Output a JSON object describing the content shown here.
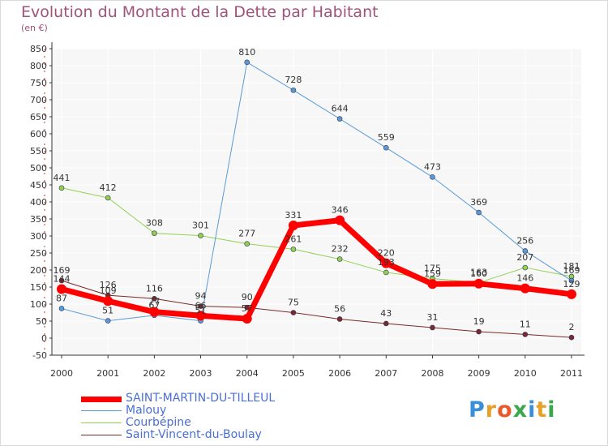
{
  "title": "Evolution du Montant de la Dette par Habitant",
  "subtitle": "(en €)",
  "brand": {
    "letters": [
      "P",
      "r",
      "o",
      "x",
      "i",
      "t",
      "i"
    ],
    "colors": [
      "#3a8fd8",
      "#e8a02a",
      "#e85a2a",
      "#3aa84a",
      "#3a8fd8",
      "#e8a02a",
      "#3aa84a"
    ]
  },
  "chart_data": {
    "type": "line",
    "title": "Evolution du Montant de la Dette par Habitant",
    "subtitle": "(en €)",
    "xlabel": "",
    "ylabel": "",
    "x": [
      "2000",
      "2001",
      "2002",
      "2003",
      "2004",
      "2005",
      "2006",
      "2007",
      "2008",
      "2009",
      "2010",
      "2011"
    ],
    "ylim": [
      -50,
      850
    ],
    "yticks": [
      -50,
      0,
      50,
      100,
      150,
      200,
      250,
      300,
      350,
      400,
      450,
      500,
      550,
      600,
      650,
      700,
      750,
      800,
      850
    ],
    "grid": true,
    "legend_position": "bottom-left",
    "series": [
      {
        "name": "SAINT-MARTIN-DU-TILLEUL",
        "color": "#ff0000",
        "width": 7,
        "values": [
          144,
          109,
          77,
          66,
          57,
          331,
          346,
          220,
          159,
          160,
          146,
          129
        ],
        "labels": [
          "144",
          "109",
          "77",
          "66",
          "57",
          "331",
          "346",
          "220",
          "159",
          "160",
          "146",
          "129"
        ]
      },
      {
        "name": "Malouy",
        "color": "#5a9bd5",
        "width": 1,
        "values": [
          87,
          51,
          67,
          51,
          810,
          728,
          644,
          559,
          473,
          369,
          256,
          169
        ],
        "labels": [
          "87",
          "51",
          "67",
          "51",
          "810",
          "728",
          "644",
          "559",
          "473",
          "369",
          "256",
          "169"
        ]
      },
      {
        "name": "Courbépine",
        "color": "#92d050",
        "width": 1,
        "values": [
          441,
          412,
          308,
          301,
          277,
          261,
          232,
          193,
          175,
          163,
          207,
          181
        ],
        "labels": [
          "441",
          "412",
          "308",
          "301",
          "277",
          "261",
          "232",
          "193",
          "175",
          "163",
          "207",
          "181"
        ]
      },
      {
        "name": "Saint-Vincent-du-Boulay",
        "color": "#7a2a2a",
        "width": 1,
        "values": [
          169,
          126,
          116,
          94,
          90,
          75,
          56,
          43,
          31,
          19,
          11,
          2
        ],
        "labels": [
          "169",
          "126",
          "116",
          "94",
          "90",
          "75",
          "56",
          "43",
          "31",
          "19",
          "11",
          "2"
        ]
      }
    ]
  }
}
